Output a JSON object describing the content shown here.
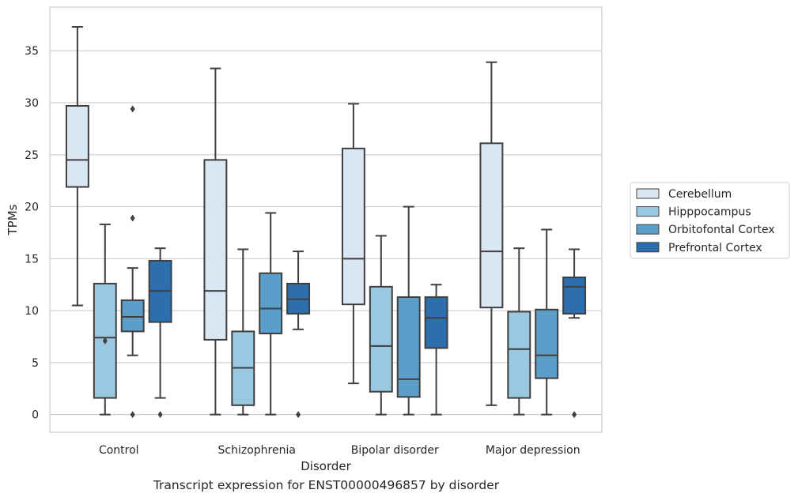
{
  "caption": "Transcript expression for ENST00000496857 by disorder",
  "chart_data": {
    "type": "box",
    "title": "",
    "xlabel": "Disorder",
    "ylabel": "TPMs",
    "ylim": [
      -1.7,
      39.2
    ],
    "yticks": [
      0,
      5,
      10,
      15,
      20,
      25,
      30,
      35
    ],
    "grid": "horizontal",
    "legend_position": "right",
    "categories": [
      "Control",
      "Schizophrenia",
      "Bipolar disorder",
      "Major depression"
    ],
    "series": [
      {
        "name": "Cerebellum",
        "color": "#d9e6f3",
        "boxes": [
          {
            "q1": 21.9,
            "median": 24.5,
            "q3": 29.7,
            "whislo": 10.5,
            "whishi": 37.3,
            "fliers": []
          },
          {
            "q1": 7.2,
            "median": 11.9,
            "q3": 24.5,
            "whislo": 0.0,
            "whishi": 33.3,
            "fliers": []
          },
          {
            "q1": 10.6,
            "median": 15.0,
            "q3": 25.6,
            "whislo": 3.0,
            "whishi": 29.9,
            "fliers": []
          },
          {
            "q1": 10.3,
            "median": 15.7,
            "q3": 26.1,
            "whislo": 0.9,
            "whishi": 33.9,
            "fliers": []
          }
        ]
      },
      {
        "name": "Hipppocampus",
        "color": "#9ac8e0",
        "boxes": [
          {
            "q1": 1.6,
            "median": 7.4,
            "q3": 12.6,
            "whislo": 0.0,
            "whishi": 18.3,
            "fliers": [
              7.1
            ]
          },
          {
            "q1": 0.9,
            "median": 4.5,
            "q3": 8.0,
            "whislo": 0.0,
            "whishi": 15.9,
            "fliers": []
          },
          {
            "q1": 2.2,
            "median": 6.6,
            "q3": 12.3,
            "whislo": 0.0,
            "whishi": 17.2,
            "fliers": []
          },
          {
            "q1": 1.6,
            "median": 6.3,
            "q3": 9.9,
            "whislo": 0.0,
            "whishi": 16.0,
            "fliers": []
          }
        ]
      },
      {
        "name": "Orbitofontal Cortex",
        "color": "#5a9ec9",
        "boxes": [
          {
            "q1": 8.0,
            "median": 9.4,
            "q3": 11.0,
            "whislo": 5.7,
            "whishi": 14.1,
            "fliers": [
              29.4,
              18.9,
              0.0
            ]
          },
          {
            "q1": 7.8,
            "median": 10.2,
            "q3": 13.6,
            "whislo": 0.0,
            "whishi": 19.4,
            "fliers": []
          },
          {
            "q1": 1.7,
            "median": 3.4,
            "q3": 11.3,
            "whislo": 0.0,
            "whishi": 20.0,
            "fliers": []
          },
          {
            "q1": 3.5,
            "median": 5.7,
            "q3": 10.1,
            "whislo": 0.0,
            "whishi": 17.8,
            "fliers": []
          }
        ]
      },
      {
        "name": "Prefrontal Cortex",
        "color": "#2d6fae",
        "boxes": [
          {
            "q1": 8.9,
            "median": 11.9,
            "q3": 14.8,
            "whislo": 1.6,
            "whishi": 16.0,
            "fliers": [
              0.0
            ]
          },
          {
            "q1": 9.7,
            "median": 11.1,
            "q3": 12.6,
            "whislo": 8.2,
            "whishi": 15.7,
            "fliers": [
              0.0
            ]
          },
          {
            "q1": 6.4,
            "median": 9.3,
            "q3": 11.3,
            "whislo": 0.0,
            "whishi": 12.5,
            "fliers": []
          },
          {
            "q1": 9.7,
            "median": 12.3,
            "q3": 13.2,
            "whislo": 9.3,
            "whishi": 15.9,
            "fliers": [
              0.0
            ]
          }
        ]
      }
    ]
  }
}
